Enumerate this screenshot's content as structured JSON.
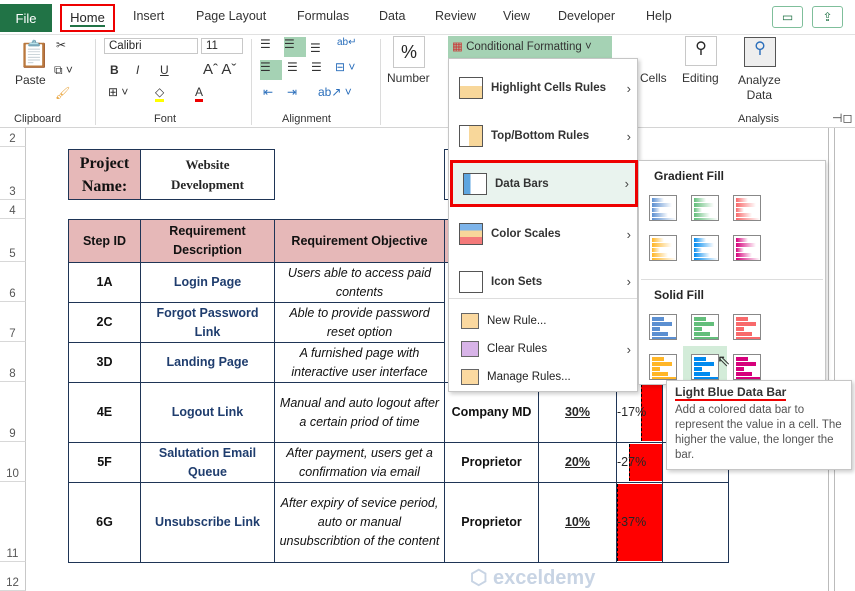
{
  "tabs": {
    "file": "File",
    "home": "Home",
    "items": [
      "Insert",
      "Page Layout",
      "Formulas",
      "Data",
      "Review",
      "View",
      "Developer",
      "Help"
    ]
  },
  "ribbon": {
    "paste": "Paste",
    "clipboard": "Clipboard",
    "font_name": "Calibri",
    "font_size": "11",
    "font": "Font",
    "alignment": "Alignment",
    "number": "Number",
    "percent": "%",
    "conditional_formatting": "Conditional Formatting",
    "cells": "Cells",
    "editing": "Editing",
    "analyze": "Analyze",
    "analyze2": "Data",
    "analysis": "Analysis",
    "bold": "B",
    "italic": "I",
    "underline": "U"
  },
  "menu": {
    "items": [
      {
        "label": "Highlight Cells Rules"
      },
      {
        "label": "Top/Bottom Rules"
      },
      {
        "label": "Data Bars"
      },
      {
        "label": "Color Scales"
      },
      {
        "label": "Icon Sets"
      }
    ],
    "small": [
      {
        "label": "New Rule..."
      },
      {
        "label": "Clear Rules"
      },
      {
        "label": "Manage Rules..."
      }
    ]
  },
  "submenu": {
    "gradient": "Gradient Fill",
    "solid": "Solid Fill",
    "colors": [
      "#5b8fd1",
      "#63be7b",
      "#f8696b",
      "#ffb628",
      "#008aef",
      "#d6007b"
    ]
  },
  "tooltip": {
    "title": "Light Blue Data Bar",
    "body": "Add a colored data bar to represent the value in a cell. The higher the value, the longer the bar."
  },
  "rows": [
    "2",
    "3",
    "4",
    "5",
    "6",
    "7",
    "8",
    "9",
    "10",
    "11",
    "12"
  ],
  "project": {
    "label": "Project Name:",
    "value": "Website Development"
  },
  "table": {
    "headers": [
      "Step ID",
      "Requirement Description",
      "Requirement Objective"
    ],
    "rows": [
      {
        "id": "1A",
        "desc": "Login Page",
        "obj": "Users able to access paid contents"
      },
      {
        "id": "2C",
        "desc": "Forgot Password Link",
        "obj": "Able to provide password reset option"
      },
      {
        "id": "3D",
        "desc": "Landing Page",
        "obj": "A furnished page with interactive user interface"
      },
      {
        "id": "4E",
        "desc": "Logout Link",
        "obj": "Manual and auto logout after a certain priod of time",
        "role": "Company MD",
        "pct": "30%",
        "neg": "-17%"
      },
      {
        "id": "5F",
        "desc": "Salutation Email Queue",
        "obj": "After payment, users get a confirmation via email",
        "role": "Proprietor",
        "pct": "20%",
        "neg": "-27%"
      },
      {
        "id": "6G",
        "desc": "Unsubscribe Link",
        "obj": "After expiry of sevice period, auto or manual unsubscribtion of the content",
        "role": "Proprietor",
        "pct": "10%",
        "neg": "-37%"
      }
    ]
  },
  "watermark": "exceldemy"
}
